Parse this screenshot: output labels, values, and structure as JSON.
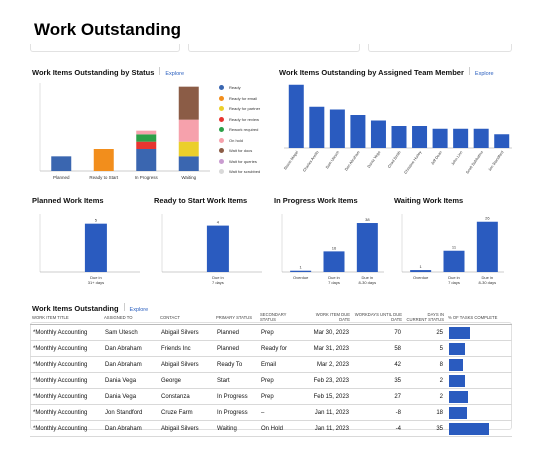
{
  "page": {
    "title": "Work Outstanding"
  },
  "colors": {
    "primary_bar": "#2a5bbf",
    "link": "#2a5fbf"
  },
  "status_panel": {
    "title": "Work Items Outstanding by Status",
    "explore": "Explore",
    "chart_data": {
      "type": "bar",
      "stacked": true,
      "categories": [
        "Planned",
        "Ready to Start",
        "In Progress",
        "Waiting"
      ],
      "series": [
        {
          "name": "Ready",
          "color": "#3a66b0",
          "values": [
            4,
            0,
            6,
            4
          ]
        },
        {
          "name": "Ready for email",
          "color": "#f28e1c",
          "values": [
            0,
            6,
            0,
            0
          ]
        },
        {
          "name": "Ready for partner",
          "color": "#ebcf2b",
          "values": [
            0,
            0,
            0,
            4
          ]
        },
        {
          "name": "Ready for review",
          "color": "#e73530",
          "values": [
            0,
            0,
            2,
            0
          ]
        },
        {
          "name": "Rework required",
          "color": "#2ca048",
          "values": [
            0,
            0,
            2,
            0
          ]
        },
        {
          "name": "On hold",
          "color": "#f6a1ac",
          "values": [
            0,
            0,
            1,
            6
          ]
        },
        {
          "name": "Wait for docs",
          "color": "#8b5c46",
          "values": [
            0,
            0,
            0,
            9
          ]
        },
        {
          "name": "Wait for queries",
          "color": "#c99bd0",
          "values": [
            0,
            0,
            0,
            0
          ]
        },
        {
          "name": "Wait for scrubbed",
          "color": "#d9d9d9",
          "values": [
            0,
            0,
            0,
            0
          ]
        }
      ]
    }
  },
  "team_panel": {
    "title": "Work Items Outstanding by Assigned Team Member",
    "explore": "Explore",
    "chart_data": {
      "type": "bar",
      "categories": [
        "Stacie Mogel",
        "Charles Anello",
        "Sam Utesch",
        "Dan Abraham",
        "Dania Vega",
        "Chad Smith",
        "Christine Hurley",
        "Jeff Dean",
        "John Linn",
        "Scott Sabbatino",
        "Jon Standford"
      ],
      "values": [
        23,
        15,
        14,
        12,
        10,
        8,
        8,
        7,
        7,
        7,
        5
      ]
    }
  },
  "small_panels": [
    {
      "title": "Planned Work Items",
      "chart_data": {
        "type": "bar",
        "categories": [
          "Due in 31+ days"
        ],
        "values": [
          5
        ],
        "ylim": [
          0,
          6
        ]
      }
    },
    {
      "title": "Ready to Start Work Items",
      "chart_data": {
        "type": "bar",
        "categories": [
          "Due in 7 days"
        ],
        "values": [
          4
        ],
        "ylim": [
          0,
          5
        ]
      }
    },
    {
      "title": "In Progress Work Items",
      "chart_data": {
        "type": "bar",
        "categories": [
          "Overdue",
          "Due in 7 days",
          "Due in 8-30 days"
        ],
        "values": [
          1,
          16,
          38
        ],
        "ylim": [
          0,
          45
        ]
      }
    },
    {
      "title": "Waiting Work Items",
      "chart_data": {
        "type": "bar",
        "categories": [
          "Overdue",
          "Due in 7 days",
          "Due in 8-30 days"
        ],
        "values": [
          1,
          11,
          26
        ],
        "ylim": [
          0,
          30
        ]
      }
    }
  ],
  "table": {
    "title": "Work Items Outstanding",
    "explore": "Explore",
    "headers": [
      "Work Item Title",
      "Assigned To",
      "Contact",
      "Primary Status",
      "Secondary Status",
      "Work Item Due Date",
      "Workdays Until Due Date",
      "Days in Current Status",
      "% of Tasks Complete"
    ],
    "rows": [
      {
        "title": "*Monthly Accounting",
        "assigned": "Sam Utesch",
        "contact": "Abigail Silvers",
        "primary": "Planned",
        "secondary": "Prep",
        "due": "Mar 30, 2023",
        "workdays": "70",
        "days": "25",
        "pct": 0.32
      },
      {
        "title": "*Monthly Accounting",
        "assigned": "Dan Abraham",
        "contact": "Friends Inc",
        "primary": "Planned",
        "secondary": "Ready for",
        "due": "Mar 31, 2023",
        "workdays": "58",
        "days": "5",
        "pct": 0.24
      },
      {
        "title": "*Monthly Accounting",
        "assigned": "Dan Abraham",
        "contact": "Abigail Silvers",
        "primary": "Ready To",
        "secondary": "Email",
        "due": "Mar 2, 2023",
        "workdays": "42",
        "days": "8",
        "pct": 0.21
      },
      {
        "title": "*Monthly Accounting",
        "assigned": "Dania Vega",
        "contact": "George",
        "primary": "Start",
        "secondary": "Prep",
        "due": "Feb 23, 2023",
        "workdays": "35",
        "days": "2",
        "pct": 0.24
      },
      {
        "title": "*Monthly Accounting",
        "assigned": "Dania Vega",
        "contact": "Constanza",
        "primary": "In Progress",
        "secondary": "Prep",
        "due": "Feb 15, 2023",
        "workdays": "27",
        "days": "2",
        "pct": 0.29
      },
      {
        "title": "*Monthly Accounting",
        "assigned": "Jon Standford",
        "contact": "Cruze Farm",
        "primary": "In Progress",
        "secondary": "–",
        "due": "Jan 11, 2023",
        "workdays": "-8",
        "days": "18",
        "pct": 0.27
      },
      {
        "title": "*Monthly Accounting",
        "assigned": "Dan Abraham",
        "contact": "Abigail Silvers",
        "primary": "Waiting",
        "secondary": "On Hold",
        "due": "Jan 11, 2023",
        "workdays": "-4",
        "days": "35",
        "pct": 0.61
      }
    ]
  }
}
